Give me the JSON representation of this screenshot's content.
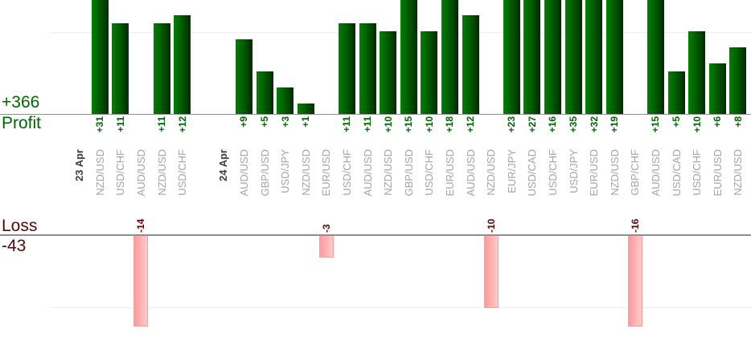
{
  "chart_data": {
    "type": "bar",
    "title": "Trade profit and loss by currency pair",
    "axis_labels": {
      "profit": "Profit",
      "loss": "Loss"
    },
    "totals": {
      "profit": "+366",
      "loss": "-43"
    },
    "grid": {
      "gridlines_visible": true,
      "profit_gridline_value": 10,
      "loss_gridline_value": -10
    },
    "layout_hints": {
      "orientation": "vertical bars; profits grow up from upper baseline, losses grow down from lower baseline",
      "value_labels_rotated": true,
      "category_labels_rotated": true,
      "profit_bars_cropped_at_top_above_value": 13,
      "loss_bars_clipped_at_plot_bottom": true,
      "legend": "none"
    },
    "entries": [
      {
        "type": "date",
        "label": "23 Apr"
      },
      {
        "type": "trade",
        "pair": "NZD/USD",
        "value": 31
      },
      {
        "type": "trade",
        "pair": "USD/CHF",
        "value": 11
      },
      {
        "type": "trade",
        "pair": "AUD/USD",
        "value": -14
      },
      {
        "type": "trade",
        "pair": "NZD/USD",
        "value": 11
      },
      {
        "type": "trade",
        "pair": "USD/CHF",
        "value": 12
      },
      {
        "type": "gap"
      },
      {
        "type": "date",
        "label": "24 Apr"
      },
      {
        "type": "trade",
        "pair": "AUD/USD",
        "value": 9
      },
      {
        "type": "trade",
        "pair": "GBP/USD",
        "value": 5
      },
      {
        "type": "trade",
        "pair": "USD/JPY",
        "value": 3
      },
      {
        "type": "trade",
        "pair": "NZD/USD",
        "value": 1
      },
      {
        "type": "trade",
        "pair": "EUR/USD",
        "value": -3
      },
      {
        "type": "trade",
        "pair": "USD/CHF",
        "value": 11
      },
      {
        "type": "trade",
        "pair": "AUD/USD",
        "value": 11
      },
      {
        "type": "trade",
        "pair": "NZD/USD",
        "value": 10
      },
      {
        "type": "trade",
        "pair": "GBP/USD",
        "value": 15
      },
      {
        "type": "trade",
        "pair": "USD/CHF",
        "value": 10
      },
      {
        "type": "trade",
        "pair": "EUR/USD",
        "value": 18
      },
      {
        "type": "trade",
        "pair": "AUD/USD",
        "value": 12
      },
      {
        "type": "trade",
        "pair": "NZD/USD",
        "value": -10
      },
      {
        "type": "trade",
        "pair": "EUR/JPY",
        "value": 23
      },
      {
        "type": "trade",
        "pair": "USD/CAD",
        "value": 27
      },
      {
        "type": "trade",
        "pair": "USD/CHF",
        "value": 16
      },
      {
        "type": "trade",
        "pair": "USD/JPY",
        "value": 35
      },
      {
        "type": "trade",
        "pair": "EUR/USD",
        "value": 32
      },
      {
        "type": "trade",
        "pair": "NZD/USD",
        "value": 19
      },
      {
        "type": "trade",
        "pair": "GBP/CHF",
        "value": -16
      },
      {
        "type": "trade",
        "pair": "AUD/USD",
        "value": 15
      },
      {
        "type": "trade",
        "pair": "USD/CAD",
        "value": 5
      },
      {
        "type": "trade",
        "pair": "USD/CHF",
        "value": 10
      },
      {
        "type": "trade",
        "pair": "EUR/USD",
        "value": 6
      },
      {
        "type": "trade",
        "pair": "NZD/USD",
        "value": 8
      }
    ],
    "colors": {
      "profit_text": "#006600",
      "loss_text": "#5a0606",
      "profit_bar_start": "#008000",
      "profit_bar_mid": "#005500",
      "profit_bar_end": "#002800",
      "loss_bar_start": "#fc9a9a",
      "loss_bar_end": "#ffcaca",
      "loss_bar_border": "#f2a2a2",
      "pair_label": "#a3a3a3",
      "date_label": "#3d3d3d",
      "axis_line": "#8f8f8f",
      "gridline": "#ededed"
    }
  }
}
